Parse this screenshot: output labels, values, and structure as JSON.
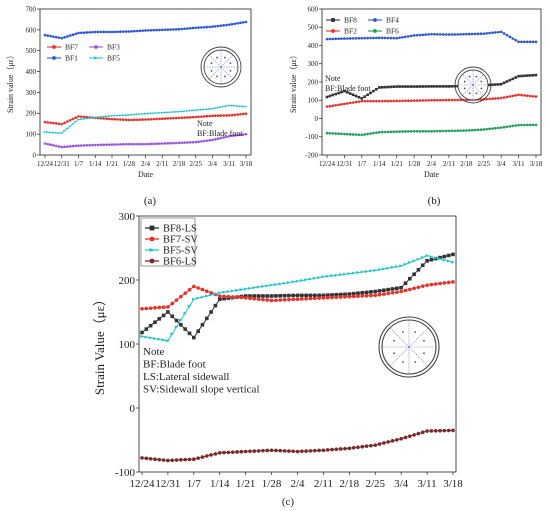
{
  "panels": [
    "(a)",
    "(b)",
    "(c)"
  ],
  "dates": [
    "12/24",
    "12/31",
    "1/7",
    "1/14",
    "1/21",
    "1/28",
    "2/4",
    "2/11",
    "2/18",
    "2/25",
    "3/4",
    "3/11",
    "3/18"
  ],
  "chart_data": [
    {
      "type": "line",
      "panel": "(a)",
      "title": "",
      "xlabel": "Date",
      "ylabel": "Strain value（με）",
      "ylim": [
        0,
        700
      ],
      "yticks": [
        0,
        100,
        200,
        300,
        400,
        500,
        600,
        700
      ],
      "x": [
        "12/24",
        "12/31",
        "1/7",
        "1/14",
        "1/21",
        "1/28",
        "2/4",
        "2/11",
        "2/18",
        "2/25",
        "3/4",
        "3/11",
        "3/18"
      ],
      "legend_columns": [
        [
          "BF7",
          "BF1"
        ],
        [
          "BF3",
          "BF5"
        ]
      ],
      "series": [
        {
          "name": "BF7",
          "color": "#e8312a",
          "marker": "circle",
          "values": [
            158,
            148,
            185,
            178,
            172,
            168,
            170,
            174,
            178,
            182,
            188,
            190,
            198
          ]
        },
        {
          "name": "BF1",
          "color": "#2a56d6",
          "marker": "circle",
          "values": [
            575,
            560,
            585,
            590,
            590,
            592,
            597,
            600,
            603,
            610,
            615,
            625,
            638
          ]
        },
        {
          "name": "BF3",
          "color": "#9b55d9",
          "marker": "circle",
          "values": [
            55,
            38,
            45,
            48,
            50,
            52,
            52,
            55,
            58,
            62,
            72,
            90,
            100
          ]
        },
        {
          "name": "BF5",
          "color": "#22c3cf",
          "marker": "triangle",
          "values": [
            110,
            105,
            170,
            180,
            188,
            192,
            198,
            203,
            208,
            215,
            222,
            238,
            232
          ]
        }
      ],
      "note": [
        "Note",
        "BF:Blade foot"
      ]
    },
    {
      "type": "line",
      "panel": "(b)",
      "title": "",
      "xlabel": "Date",
      "ylabel": "Strain value（με）",
      "ylim": [
        -200,
        600
      ],
      "yticks": [
        -200,
        -100,
        0,
        100,
        200,
        300,
        400,
        500,
        600
      ],
      "x": [
        "12/24",
        "12/31",
        "1/7",
        "1/14",
        "1/21",
        "1/28",
        "2/4",
        "2/11",
        "2/18",
        "2/25",
        "3/4",
        "3/11",
        "3/18"
      ],
      "legend_columns": [
        [
          "BF8",
          "BF2"
        ],
        [
          "BF4",
          "BF6"
        ]
      ],
      "series": [
        {
          "name": "BF8",
          "color": "#333333",
          "marker": "square",
          "values": [
            118,
            150,
            110,
            170,
            175,
            175,
            176,
            176,
            178,
            182,
            188,
            232,
            238
          ]
        },
        {
          "name": "BF2",
          "color": "#e8312a",
          "marker": "circle",
          "values": [
            65,
            80,
            95,
            95,
            96,
            98,
            100,
            101,
            102,
            105,
            112,
            130,
            120
          ]
        },
        {
          "name": "BF4",
          "color": "#2a56d6",
          "marker": "circle",
          "values": [
            435,
            438,
            440,
            442,
            440,
            455,
            462,
            460,
            462,
            465,
            475,
            420,
            420
          ]
        },
        {
          "name": "BF6",
          "color": "#1f9e55",
          "marker": "circle",
          "values": [
            -80,
            -85,
            -90,
            -75,
            -72,
            -70,
            -70,
            -68,
            -66,
            -60,
            -50,
            -36,
            -35
          ]
        }
      ],
      "note": [
        "Note",
        "BF:Blade foot"
      ]
    },
    {
      "type": "line",
      "panel": "(c)",
      "title": "",
      "xlabel": "",
      "ylabel": "Strain Value（με）",
      "ylim": [
        -100,
        300
      ],
      "yticks": [
        -100,
        0,
        100,
        200,
        300
      ],
      "x": [
        "12/24",
        "12/31",
        "1/7",
        "1/14",
        "1/21",
        "1/28",
        "2/4",
        "2/11",
        "2/18",
        "2/25",
        "3/4",
        "3/11",
        "3/18"
      ],
      "legend_columns": [
        [
          "BF8-LS",
          "BF7-SV",
          "BF5-SV",
          "BF6-LS"
        ]
      ],
      "series": [
        {
          "name": "BF8-LS",
          "color": "#333333",
          "marker": "square",
          "values": [
            118,
            150,
            110,
            170,
            175,
            175,
            176,
            176,
            178,
            182,
            188,
            230,
            240
          ]
        },
        {
          "name": "BF7-SV",
          "color": "#e8312a",
          "marker": "circle",
          "values": [
            155,
            158,
            190,
            175,
            172,
            168,
            170,
            172,
            174,
            176,
            182,
            192,
            197
          ]
        },
        {
          "name": "BF5-SV",
          "color": "#22c3cf",
          "marker": "triangle",
          "values": [
            112,
            105,
            170,
            180,
            186,
            192,
            198,
            205,
            210,
            215,
            222,
            238,
            228
          ]
        },
        {
          "name": "BF6-LS",
          "color": "#7a2a2a",
          "marker": "circle",
          "values": [
            -78,
            -82,
            -80,
            -70,
            -68,
            -66,
            -68,
            -66,
            -63,
            -58,
            -48,
            -36,
            -35
          ]
        }
      ],
      "note": [
        "Note",
        "BF:Blade foot",
        "LS:Lateral sidewall",
        "SV:Sidewall slope vertical"
      ]
    }
  ]
}
